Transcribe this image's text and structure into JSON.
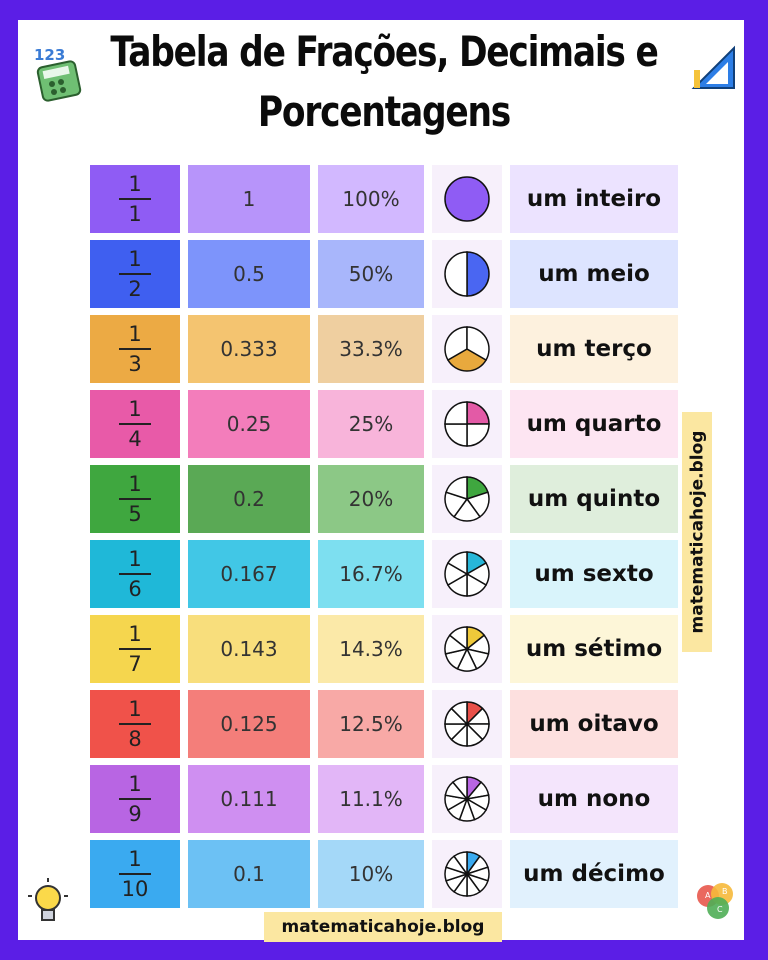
{
  "title_line1": "Tabela de Frações, Decimais e",
  "title_line2": "Porcentagens",
  "watermark_side": "matematicahoje.blog",
  "watermark_bottom": "matematicahoje.blog",
  "logo_calculator_text": "123",
  "logo_abc": [
    "A",
    "B",
    "C"
  ],
  "rows": [
    {
      "num": "1",
      "den": "1",
      "decimal": "1",
      "percent": "100%",
      "name": "um inteiro",
      "slices": 1,
      "colors": [
        "#8f5cf4",
        "#b794fa",
        "#d2b8ff",
        "#8f5cf4",
        "#ece3ff"
      ]
    },
    {
      "num": "1",
      "den": "2",
      "decimal": "0.5",
      "percent": "50%",
      "name": "um meio",
      "slices": 2,
      "colors": [
        "#3f5ff0",
        "#7d94fb",
        "#a8b6fb",
        "#4a66f2",
        "#dde4ff"
      ]
    },
    {
      "num": "1",
      "den": "3",
      "decimal": "0.333",
      "percent": "33.3%",
      "name": "um terço",
      "slices": 3,
      "colors": [
        "#ecaa44",
        "#f4c470",
        "#efcfa0",
        "#e8a93d",
        "#fdf1de"
      ]
    },
    {
      "num": "1",
      "den": "4",
      "decimal": "0.25",
      "percent": "25%",
      "name": "um quarto",
      "slices": 4,
      "colors": [
        "#e85aa8",
        "#f37dbb",
        "#f8b4da",
        "#e35aa6",
        "#fde5f2"
      ]
    },
    {
      "num": "1",
      "den": "5",
      "decimal": "0.2",
      "percent": "20%",
      "name": "um quinto",
      "slices": 5,
      "colors": [
        "#3fa73f",
        "#5aa955",
        "#8cc886",
        "#3fa73f",
        "#dfeedc"
      ]
    },
    {
      "num": "1",
      "den": "6",
      "decimal": "0.167",
      "percent": "16.7%",
      "name": "um sexto",
      "slices": 6,
      "colors": [
        "#1fb8d8",
        "#41c7e6",
        "#7ddff0",
        "#27b6d8",
        "#d9f4fb"
      ]
    },
    {
      "num": "1",
      "den": "7",
      "decimal": "0.143",
      "percent": "14.3%",
      "name": "um sétimo",
      "slices": 7,
      "colors": [
        "#f5d64e",
        "#f8de7c",
        "#fbe9a8",
        "#efc93a",
        "#fdf6d8"
      ]
    },
    {
      "num": "1",
      "den": "8",
      "decimal": "0.125",
      "percent": "12.5%",
      "name": "um oitavo",
      "slices": 8,
      "colors": [
        "#f0524a",
        "#f47e7a",
        "#f8a9a6",
        "#e94f48",
        "#fde0df"
      ]
    },
    {
      "num": "1",
      "den": "9",
      "decimal": "0.111",
      "percent": "11.1%",
      "name": "um nono",
      "slices": 9,
      "colors": [
        "#b865e3",
        "#cf8ff1",
        "#e2b6f7",
        "#b865e3",
        "#f4e5fc"
      ]
    },
    {
      "num": "1",
      "den": "10",
      "decimal": "0.1",
      "percent": "10%",
      "name": "um décimo",
      "slices": 10,
      "colors": [
        "#3aaaf0",
        "#6cc1f4",
        "#a4d8f8",
        "#3aaaf0",
        "#e1f1fd"
      ]
    }
  ]
}
